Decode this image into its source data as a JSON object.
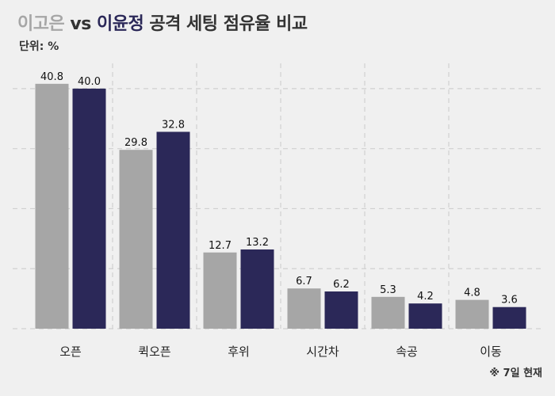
{
  "title": {
    "player_a": "이고은",
    "vs": "vs",
    "player_b": "이윤정",
    "rest": "공격 세팅 점유율 비교"
  },
  "unit_label": "단위: %",
  "footnote": "※ 7일 현재",
  "colors": {
    "player_a": "#a6a6a6",
    "player_b": "#2b2858",
    "title_text": "#333333",
    "grid": "#d0d0d0"
  },
  "chart_data": {
    "type": "bar",
    "categories": [
      "오픈",
      "퀵오픈",
      "후위",
      "시간차",
      "속공",
      "이동"
    ],
    "series": [
      {
        "name": "이고은",
        "values": [
          40.8,
          29.8,
          12.7,
          6.7,
          5.3,
          4.8
        ],
        "labels": [
          "40.8",
          "29.8",
          "12.7",
          "6.7",
          "5.3",
          "4.8"
        ]
      },
      {
        "name": "이윤정",
        "values": [
          40.0,
          32.8,
          13.2,
          6.2,
          4.2,
          3.6
        ],
        "labels": [
          "40.0",
          "32.8",
          "13.2",
          "6.2",
          "4.2",
          "3.6"
        ]
      }
    ],
    "ylim": [
      0,
      45
    ],
    "grid": true,
    "legend": "title",
    "xlabel": "",
    "ylabel": ""
  }
}
